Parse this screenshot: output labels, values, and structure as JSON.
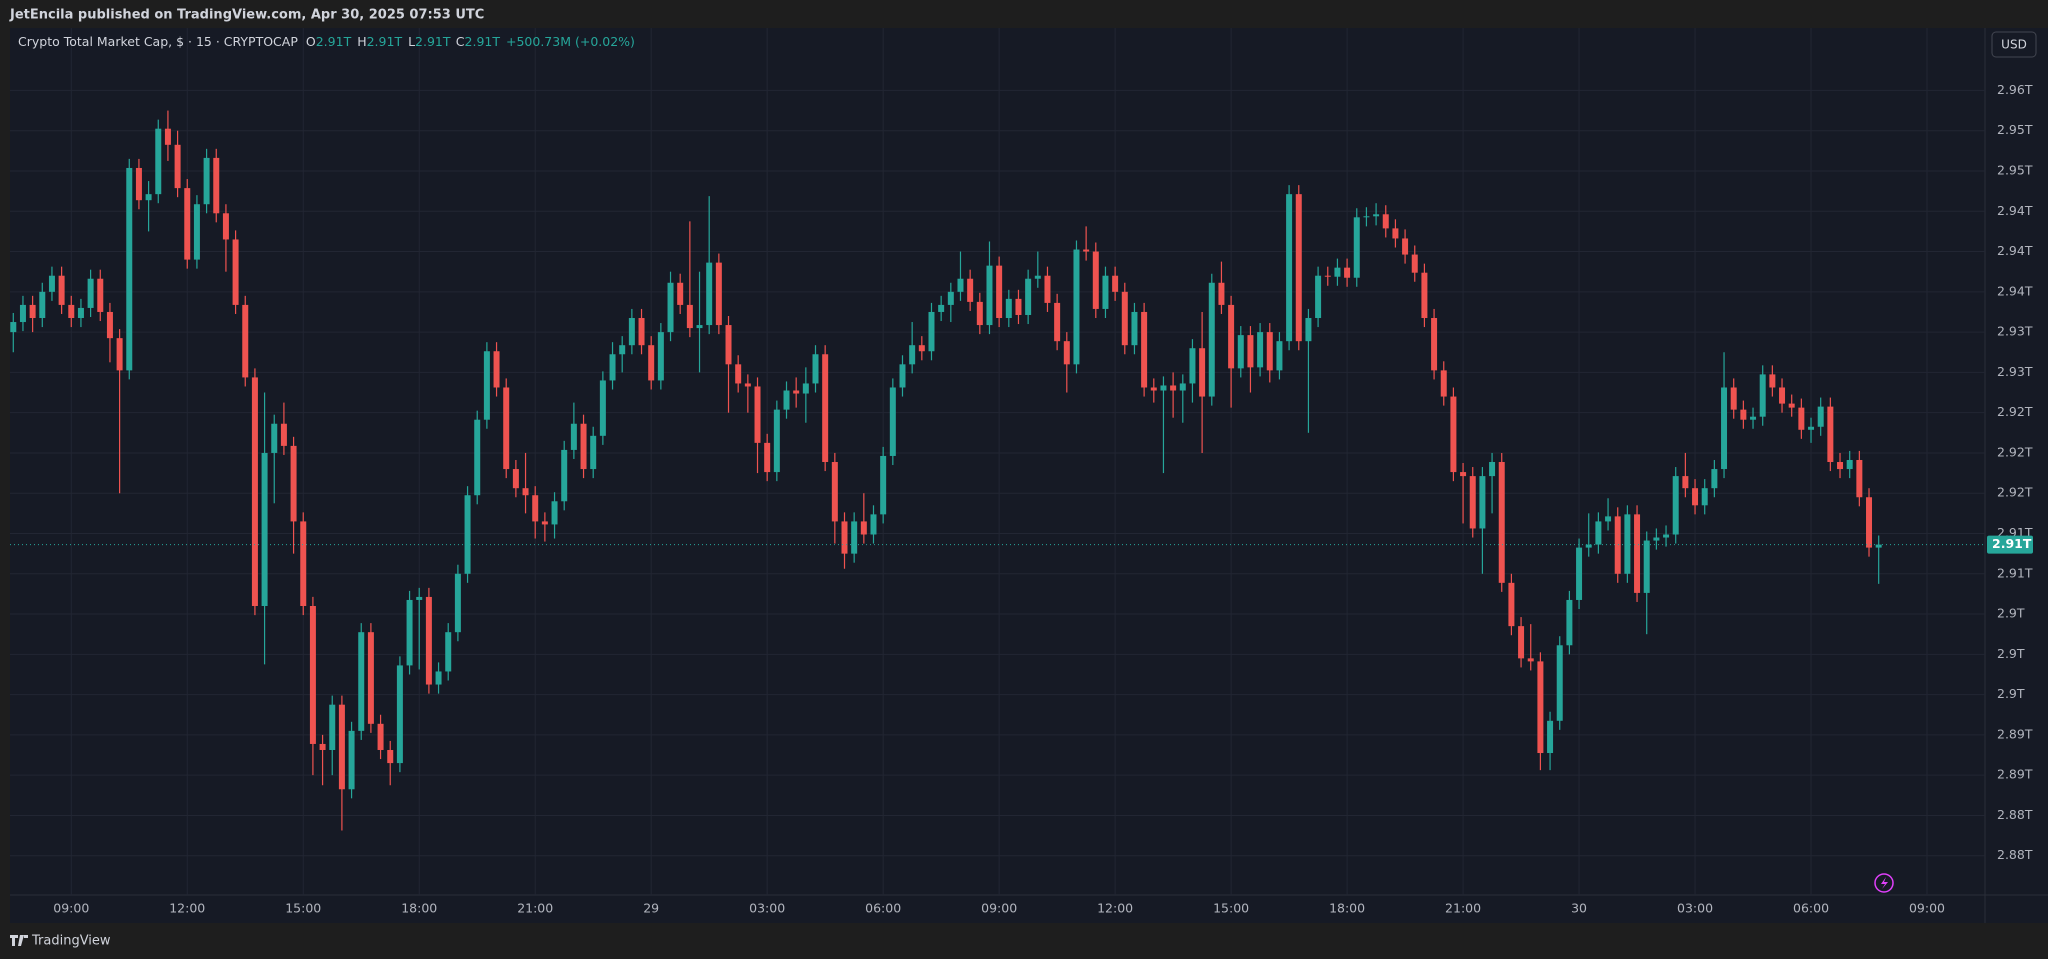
{
  "header": {
    "published": "JetEncila published on TradingView.com, Apr 30, 2025 07:53 UTC",
    "brand": "TradingView",
    "currency": "USD"
  },
  "chart_data": {
    "type": "candlestick",
    "title": "Crypto Total Market Cap, $ · 15 · CRYPTOCAP",
    "ohlc_labels": [
      {
        "key": "O",
        "value": "2.91T"
      },
      {
        "key": "H",
        "value": "2.91T"
      },
      {
        "key": "L",
        "value": "2.91T"
      },
      {
        "key": "C",
        "value": "2.91T"
      }
    ],
    "change_label": "+500.73M (+0.02%)",
    "up_color": "#26a69a",
    "down_color": "#ef5350",
    "grid": true,
    "xlim": [
      -0.34,
      204
    ],
    "xticks": [
      {
        "value": 6,
        "label": "09:00"
      },
      {
        "value": 18,
        "label": "12:00"
      },
      {
        "value": 30,
        "label": "15:00"
      },
      {
        "value": 42,
        "label": "18:00"
      },
      {
        "value": 54,
        "label": "21:00"
      },
      {
        "value": 66,
        "label": "29"
      },
      {
        "value": 78,
        "label": "03:00"
      },
      {
        "value": 90,
        "label": "06:00"
      },
      {
        "value": 102,
        "label": "09:00"
      },
      {
        "value": 114,
        "label": "12:00"
      },
      {
        "value": 126,
        "label": "15:00"
      },
      {
        "value": 138,
        "label": "18:00"
      },
      {
        "value": 150,
        "label": "21:00"
      },
      {
        "value": 162,
        "label": "30"
      },
      {
        "value": 174,
        "label": "03:00"
      },
      {
        "value": 186,
        "label": "06:00"
      },
      {
        "value": 198,
        "label": "09:00"
      }
    ],
    "ylim": [
      2.8761,
      2.9622
    ],
    "yticks": [
      {
        "value": 2.956,
        "label": "2.96T"
      },
      {
        "value": 2.952,
        "label": "2.95T"
      },
      {
        "value": 2.948,
        "label": "2.95T"
      },
      {
        "value": 2.944,
        "label": "2.94T"
      },
      {
        "value": 2.94,
        "label": "2.94T"
      },
      {
        "value": 2.936,
        "label": "2.94T"
      },
      {
        "value": 2.932,
        "label": "2.93T"
      },
      {
        "value": 2.928,
        "label": "2.93T"
      },
      {
        "value": 2.924,
        "label": "2.92T"
      },
      {
        "value": 2.92,
        "label": "2.92T"
      },
      {
        "value": 2.916,
        "label": "2.92T"
      },
      {
        "value": 2.912,
        "label": "2.91T"
      },
      {
        "value": 2.908,
        "label": "2.91T"
      },
      {
        "value": 2.904,
        "label": "2.9T"
      },
      {
        "value": 2.9,
        "label": "2.9T"
      },
      {
        "value": 2.896,
        "label": "2.9T"
      },
      {
        "value": 2.892,
        "label": "2.89T"
      },
      {
        "value": 2.888,
        "label": "2.89T"
      },
      {
        "value": 2.884,
        "label": "2.88T"
      },
      {
        "value": 2.88,
        "label": "2.88T"
      }
    ],
    "last_price": {
      "value": 2.9109,
      "label": "2.91T"
    },
    "open": [
      2.932,
      2.933,
      2.9347,
      2.9334,
      2.936,
      2.9376,
      2.9347,
      2.9334,
      2.9344,
      2.9373,
      2.934,
      2.9314,
      2.9282,
      2.9483,
      2.9451,
      2.9457,
      2.9522,
      2.9506,
      2.9463,
      2.9392,
      2.9447,
      2.9493,
      2.9438,
      2.9412,
      2.9347,
      2.9275,
      2.9048,
      2.92,
      2.9229,
      2.9207,
      2.9132,
      2.9048,
      2.8911,
      2.8905,
      2.895,
      2.8866,
      2.8924,
      2.9022,
      2.8931,
      2.8905,
      2.8892,
      2.8989,
      2.9054,
      2.9057,
      2.897,
      2.8983,
      2.9022,
      2.908,
      2.9158,
      2.9233,
      2.9301,
      2.9265,
      2.9184,
      2.9165,
      2.9158,
      2.9132,
      2.9129,
      2.9152,
      2.9203,
      2.9229,
      2.9184,
      2.9217,
      2.9272,
      2.9298,
      2.9307,
      2.9334,
      2.9307,
      2.9272,
      2.932,
      2.9369,
      2.9347,
      2.9324,
      2.9327,
      2.9389,
      2.9327,
      2.9288,
      2.9269,
      2.9266,
      2.921,
      2.9181,
      2.9243,
      2.9262,
      2.9259,
      2.9269,
      2.9298,
      2.9191,
      2.9132,
      2.91,
      2.9132,
      2.9119,
      2.9139,
      2.9197,
      2.9265,
      2.9288,
      2.9307,
      2.9301,
      2.934,
      2.9347,
      2.936,
      2.9373,
      2.935,
      2.9327,
      2.9386,
      2.9334,
      2.9353,
      2.9337,
      2.9373,
      2.9376,
      2.9349,
      2.9311,
      2.9288,
      2.9402,
      2.94,
      2.9343,
      2.9376,
      2.936,
      2.9307,
      2.934,
      2.9265,
      2.9262,
      2.9267,
      2.9262,
      2.9269,
      2.9304,
      2.9256,
      2.9369,
      2.9347,
      2.9284,
      2.9317,
      2.9285,
      2.932,
      2.9282,
      2.9311,
      2.9457,
      2.9311,
      2.9334,
      2.9376,
      2.9375,
      2.9384,
      2.9374,
      2.9434,
      2.9435,
      2.9437,
      2.9423,
      2.9413,
      2.9397,
      2.9379,
      2.9334,
      2.9282,
      2.9256,
      2.9181,
      2.9177,
      2.9125,
      2.9177,
      2.9191,
      2.9071,
      2.9028,
      2.8996,
      2.8993,
      2.8902,
      2.8934,
      2.9009,
      2.9054,
      2.9106,
      2.9109,
      2.9132,
      2.9137,
      2.908,
      2.9139,
      2.9061,
      2.9113,
      2.9116,
      2.9119,
      2.9177,
      2.9165,
      2.9148,
      2.9165,
      2.9184,
      2.9265,
      2.9243,
      2.9233,
      2.9236,
      2.9278,
      2.9265,
      2.9249,
      2.9245,
      2.9223,
      2.9226,
      2.9246,
      2.9191,
      2.9184,
      2.9193,
      2.9156,
      2.9106
    ],
    "high": [
      2.9339,
      2.9356,
      2.9356,
      2.9369,
      2.9385,
      2.9385,
      2.9356,
      2.9353,
      2.9382,
      2.9382,
      2.9349,
      2.9323,
      2.9492,
      2.9492,
      2.947,
      2.9531,
      2.954,
      2.952,
      2.9472,
      2.9456,
      2.9502,
      2.9502,
      2.9447,
      2.9421,
      2.9356,
      2.9284,
      2.926,
      2.9238,
      2.925,
      2.9216,
      2.9141,
      2.9057,
      2.892,
      2.8959,
      2.8959,
      2.8933,
      2.9031,
      2.9031,
      2.894,
      2.8914,
      2.8998,
      2.9063,
      2.9066,
      2.9066,
      2.8992,
      2.9031,
      2.9089,
      2.9167,
      2.9242,
      2.931,
      2.931,
      2.9274,
      2.9193,
      2.92,
      2.9167,
      2.9141,
      2.9161,
      2.9212,
      2.925,
      2.9238,
      2.9226,
      2.9281,
      2.931,
      2.9316,
      2.9343,
      2.9343,
      2.9316,
      2.9329,
      2.938,
      2.9378,
      2.943,
      2.938,
      2.9455,
      2.9398,
      2.9336,
      2.9297,
      2.9278,
      2.9275,
      2.9219,
      2.9252,
      2.9271,
      2.9275,
      2.9285,
      2.9307,
      2.9307,
      2.92,
      2.9141,
      2.9141,
      2.916,
      2.9148,
      2.9206,
      2.9274,
      2.9297,
      2.933,
      2.9316,
      2.9349,
      2.9356,
      2.9369,
      2.94,
      2.9382,
      2.9359,
      2.941,
      2.9395,
      2.9362,
      2.9362,
      2.9382,
      2.94,
      2.9385,
      2.9358,
      2.932,
      2.9411,
      2.9425,
      2.9409,
      2.9385,
      2.9385,
      2.9369,
      2.9349,
      2.9349,
      2.9274,
      2.9276,
      2.928,
      2.9278,
      2.9313,
      2.934,
      2.9378,
      2.939,
      2.9356,
      2.9326,
      2.9326,
      2.9329,
      2.9329,
      2.932,
      2.9466,
      2.9466,
      2.9343,
      2.9385,
      2.9385,
      2.9393,
      2.9393,
      2.9443,
      2.9444,
      2.9448,
      2.9446,
      2.9432,
      2.9422,
      2.9406,
      2.9388,
      2.9343,
      2.9291,
      2.9265,
      2.919,
      2.9186,
      2.9186,
      2.92,
      2.92,
      2.908,
      2.9037,
      2.903,
      2.9002,
      2.8943,
      2.9018,
      2.9063,
      2.9115,
      2.914,
      2.9141,
      2.9155,
      2.9146,
      2.9148,
      2.9148,
      2.9122,
      2.9125,
      2.9128,
      2.9186,
      2.92,
      2.9174,
      2.9174,
      2.9193,
      2.93,
      2.9274,
      2.9252,
      2.9245,
      2.9287,
      2.9287,
      2.9274,
      2.9258,
      2.9254,
      2.9235,
      2.9255,
      2.9255,
      2.92,
      2.9202,
      2.9202,
      2.9165,
      2.9118
    ],
    "low": [
      2.93,
      2.9321,
      2.932,
      2.9325,
      2.9351,
      2.9338,
      2.9325,
      2.9325,
      2.9335,
      2.9331,
      2.929,
      2.916,
      2.9273,
      2.9442,
      2.942,
      2.9448,
      2.949,
      2.9454,
      2.9383,
      2.9383,
      2.9438,
      2.9429,
      2.938,
      2.9338,
      2.9266,
      2.9039,
      2.899,
      2.915,
      2.9198,
      2.91,
      2.9039,
      2.888,
      2.887,
      2.888,
      2.8825,
      2.8857,
      2.8915,
      2.8922,
      2.8896,
      2.887,
      2.8883,
      2.898,
      2.8985,
      2.8961,
      2.8961,
      2.8974,
      2.9013,
      2.9071,
      2.9149,
      2.9224,
      2.9256,
      2.9175,
      2.9156,
      2.914,
      2.9115,
      2.9112,
      2.9115,
      2.9143,
      2.9194,
      2.9175,
      2.9175,
      2.9208,
      2.9263,
      2.928,
      2.9298,
      2.9298,
      2.9263,
      2.9263,
      2.9311,
      2.9338,
      2.9315,
      2.928,
      2.9318,
      2.9318,
      2.924,
      2.926,
      2.924,
      2.918,
      2.9172,
      2.9172,
      2.9234,
      2.9245,
      2.923,
      2.926,
      2.9182,
      2.911,
      2.9085,
      2.9091,
      2.911,
      2.911,
      2.913,
      2.9188,
      2.9256,
      2.9279,
      2.9292,
      2.9292,
      2.9331,
      2.933,
      2.9351,
      2.9341,
      2.9318,
      2.9318,
      2.9325,
      2.9325,
      2.9328,
      2.9328,
      2.9364,
      2.934,
      2.9302,
      2.926,
      2.9279,
      2.9391,
      2.9334,
      2.9334,
      2.9351,
      2.9298,
      2.9298,
      2.9256,
      2.925,
      2.918,
      2.9235,
      2.923,
      2.925,
      2.92,
      2.9247,
      2.9338,
      2.9245,
      2.9275,
      2.926,
      2.9276,
      2.927,
      2.9273,
      2.9302,
      2.9302,
      2.922,
      2.9325,
      2.9366,
      2.9366,
      2.9365,
      2.9365,
      2.9425,
      2.9426,
      2.9414,
      2.9404,
      2.9388,
      2.937,
      2.9325,
      2.9273,
      2.9247,
      2.9172,
      2.913,
      2.9116,
      2.908,
      2.914,
      2.9062,
      2.9019,
      2.8987,
      2.8984,
      2.8885,
      2.8885,
      2.8925,
      2.9,
      2.9045,
      2.9097,
      2.91,
      2.9123,
      2.9071,
      2.9071,
      2.9052,
      2.902,
      2.9104,
      2.9107,
      2.911,
      2.9156,
      2.9139,
      2.9139,
      2.9156,
      2.9175,
      2.9234,
      2.9224,
      2.9224,
      2.9227,
      2.9256,
      2.924,
      2.9236,
      2.9214,
      2.921,
      2.9217,
      2.9182,
      2.9175,
      2.9175,
      2.9147,
      2.9097,
      2.907
    ],
    "close": [
      2.933,
      2.9347,
      2.9334,
      2.936,
      2.9376,
      2.9347,
      2.9334,
      2.9344,
      2.9373,
      2.934,
      2.9314,
      2.9282,
      2.9483,
      2.9451,
      2.9457,
      2.9522,
      2.9506,
      2.9463,
      2.9392,
      2.9447,
      2.9493,
      2.9438,
      2.9412,
      2.9347,
      2.9275,
      2.9048,
      2.92,
      2.9229,
      2.9207,
      2.9132,
      2.9048,
      2.8911,
      2.8905,
      2.895,
      2.8866,
      2.8924,
      2.9022,
      2.8931,
      2.8905,
      2.8892,
      2.8989,
      2.9054,
      2.9057,
      2.897,
      2.8983,
      2.9022,
      2.908,
      2.9158,
      2.9233,
      2.9301,
      2.9265,
      2.9184,
      2.9165,
      2.9158,
      2.9132,
      2.9129,
      2.9152,
      2.9203,
      2.9229,
      2.9184,
      2.9217,
      2.9272,
      2.9298,
      2.9307,
      2.9334,
      2.9307,
      2.9272,
      2.932,
      2.9369,
      2.9347,
      2.9324,
      2.9327,
      2.9389,
      2.9327,
      2.9288,
      2.9269,
      2.9266,
      2.921,
      2.9181,
      2.9243,
      2.9262,
      2.9259,
      2.9269,
      2.9298,
      2.9191,
      2.9132,
      2.91,
      2.9132,
      2.9119,
      2.9139,
      2.9197,
      2.9265,
      2.9288,
      2.9307,
      2.9301,
      2.934,
      2.9347,
      2.936,
      2.9373,
      2.935,
      2.9327,
      2.9386,
      2.9334,
      2.9353,
      2.9337,
      2.9373,
      2.9376,
      2.9349,
      2.9311,
      2.9288,
      2.9402,
      2.94,
      2.9343,
      2.9376,
      2.936,
      2.9307,
      2.934,
      2.9265,
      2.9262,
      2.9267,
      2.9262,
      2.9269,
      2.9304,
      2.9256,
      2.9369,
      2.9347,
      2.9284,
      2.9317,
      2.9285,
      2.932,
      2.9282,
      2.9311,
      2.9457,
      2.9311,
      2.9334,
      2.9376,
      2.9375,
      2.9384,
      2.9374,
      2.9434,
      2.9435,
      2.9437,
      2.9423,
      2.9413,
      2.9397,
      2.9379,
      2.9334,
      2.9282,
      2.9256,
      2.9181,
      2.9177,
      2.9125,
      2.9177,
      2.9191,
      2.9071,
      2.9028,
      2.8996,
      2.8993,
      2.8902,
      2.8934,
      2.9009,
      2.9054,
      2.9106,
      2.9109,
      2.9132,
      2.9137,
      2.908,
      2.9139,
      2.9061,
      2.9113,
      2.9116,
      2.9119,
      2.9177,
      2.9165,
      2.9148,
      2.9165,
      2.9184,
      2.9265,
      2.9243,
      2.9233,
      2.9236,
      2.9278,
      2.9265,
      2.9249,
      2.9245,
      2.9223,
      2.9226,
      2.9246,
      2.9191,
      2.9184,
      2.9193,
      2.9156,
      2.9106,
      2.9109
    ]
  }
}
